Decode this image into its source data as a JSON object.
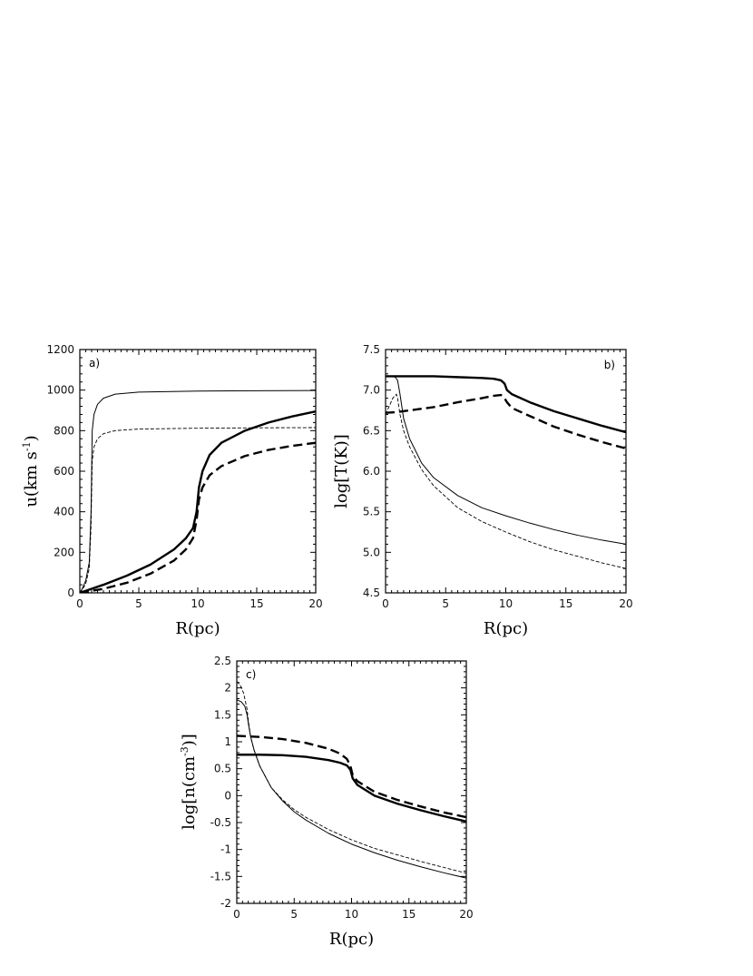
{
  "chart_data": [
    {
      "type": "line",
      "panel_label": "a)",
      "xlabel": "R(pc)",
      "ylabel_main": "u(km s",
      "ylabel_sup": "-1",
      "ylabel_end": ")",
      "xlim": [
        0,
        20
      ],
      "ylim": [
        0,
        1200
      ],
      "xticks": [
        0,
        5,
        10,
        15,
        20
      ],
      "yticks": [
        0,
        200,
        400,
        600,
        800,
        1000,
        1200
      ],
      "series": [
        {
          "style": "thin-solid",
          "x": [
            0,
            0.2,
            0.5,
            0.8,
            0.95,
            1.05,
            1.2,
            1.5,
            2,
            3,
            5,
            10,
            15,
            20
          ],
          "y": [
            0,
            20,
            60,
            150,
            400,
            800,
            880,
            930,
            960,
            980,
            990,
            995,
            997,
            998
          ]
        },
        {
          "style": "thin-dashed",
          "x": [
            0,
            0.2,
            0.5,
            0.8,
            0.95,
            1.05,
            1.2,
            1.5,
            2,
            3,
            5,
            10,
            15,
            20
          ],
          "y": [
            0,
            15,
            45,
            120,
            330,
            650,
            720,
            760,
            785,
            800,
            808,
            812,
            814,
            815
          ]
        },
        {
          "style": "thick-solid",
          "x": [
            0,
            2,
            4,
            6,
            8,
            9,
            9.6,
            9.9,
            10.1,
            10.4,
            11,
            12,
            14,
            16,
            18,
            20
          ],
          "y": [
            0,
            40,
            85,
            140,
            215,
            270,
            320,
            400,
            520,
            600,
            680,
            740,
            800,
            840,
            870,
            895
          ]
        },
        {
          "style": "thick-dashed",
          "x": [
            0,
            2,
            4,
            6,
            8,
            9,
            9.6,
            9.9,
            10.1,
            10.4,
            11,
            12,
            14,
            16,
            18,
            20
          ],
          "y": [
            0,
            20,
            50,
            95,
            160,
            215,
            270,
            360,
            460,
            520,
            580,
            625,
            675,
            705,
            725,
            740
          ]
        }
      ]
    },
    {
      "type": "line",
      "panel_label": "b)",
      "xlabel": "R(pc)",
      "ylabel_main": "log[T(K)]",
      "xlim": [
        0,
        20
      ],
      "ylim": [
        4.5,
        7.5
      ],
      "xticks": [
        0,
        5,
        10,
        15,
        20
      ],
      "yticks": [
        4.5,
        5.0,
        5.5,
        6.0,
        6.5,
        7.0,
        7.5
      ],
      "ytick_labels": [
        "4.5",
        "5.0",
        "5.5",
        "6.0",
        "6.5",
        "7.0",
        "7.5"
      ],
      "series": [
        {
          "style": "thick-solid",
          "x": [
            0,
            2,
            4,
            6,
            8,
            9,
            9.6,
            9.9,
            10.1,
            10.5,
            12,
            14,
            16,
            18,
            20
          ],
          "y": [
            7.17,
            7.17,
            7.17,
            7.16,
            7.15,
            7.14,
            7.12,
            7.08,
            7.0,
            6.95,
            6.85,
            6.74,
            6.65,
            6.56,
            6.48
          ]
        },
        {
          "style": "thick-dashed",
          "x": [
            0,
            1,
            2,
            4,
            6,
            8,
            9,
            9.6,
            9.9,
            10.1,
            10.5,
            12,
            14,
            16,
            18,
            20
          ],
          "y": [
            6.72,
            6.73,
            6.75,
            6.79,
            6.85,
            6.9,
            6.93,
            6.94,
            6.9,
            6.85,
            6.78,
            6.68,
            6.55,
            6.45,
            6.36,
            6.28
          ]
        },
        {
          "style": "thin-solid",
          "x": [
            0,
            0.5,
            0.8,
            1.0,
            1.2,
            1.5,
            2,
            3,
            4,
            6,
            8,
            10,
            12,
            14,
            16,
            18,
            20
          ],
          "y": [
            7.17,
            7.17,
            7.16,
            7.12,
            6.95,
            6.65,
            6.4,
            6.1,
            5.92,
            5.7,
            5.55,
            5.45,
            5.36,
            5.28,
            5.21,
            5.15,
            5.1
          ]
        },
        {
          "style": "thin-dashed",
          "x": [
            0,
            0.3,
            0.6,
            0.9,
            1.0,
            1.2,
            1.5,
            2,
            3,
            4,
            6,
            8,
            10,
            12,
            14,
            16,
            18,
            20
          ],
          "y": [
            6.7,
            6.8,
            6.9,
            6.95,
            6.9,
            6.7,
            6.5,
            6.3,
            6.02,
            5.82,
            5.55,
            5.38,
            5.25,
            5.13,
            5.03,
            4.95,
            4.87,
            4.8
          ]
        }
      ]
    },
    {
      "type": "line",
      "panel_label": "c)",
      "xlabel": "R(pc)",
      "ylabel_main": "log[n(cm",
      "ylabel_sup": "-3",
      "ylabel_end": ")]",
      "xlim": [
        0,
        20
      ],
      "ylim": [
        -2,
        2.5
      ],
      "xticks": [
        0,
        5,
        10,
        15,
        20
      ],
      "yticks": [
        -2,
        -1.5,
        -1,
        -0.5,
        0,
        0.5,
        1,
        1.5,
        2,
        2.5
      ],
      "series": [
        {
          "style": "thick-solid",
          "x": [
            0,
            2,
            4,
            6,
            8,
            9,
            9.6,
            9.9,
            10.1,
            10.5,
            12,
            14,
            16,
            18,
            20
          ],
          "y": [
            0.76,
            0.76,
            0.75,
            0.72,
            0.66,
            0.61,
            0.56,
            0.48,
            0.32,
            0.2,
            0.0,
            -0.15,
            -0.27,
            -0.38,
            -0.48
          ]
        },
        {
          "style": "thick-dashed",
          "x": [
            0,
            2,
            4,
            6,
            8,
            9,
            9.6,
            9.9,
            10.1,
            10.5,
            12,
            14,
            16,
            18,
            20
          ],
          "y": [
            1.11,
            1.09,
            1.05,
            0.98,
            0.87,
            0.78,
            0.68,
            0.55,
            0.38,
            0.27,
            0.07,
            -0.08,
            -0.2,
            -0.31,
            -0.4
          ]
        },
        {
          "style": "thin-solid",
          "x": [
            0,
            0.4,
            0.7,
            0.9,
            1.0,
            1.2,
            1.5,
            2,
            3,
            4,
            5,
            6,
            8,
            10,
            12,
            14,
            16,
            18,
            20
          ],
          "y": [
            1.78,
            1.74,
            1.66,
            1.5,
            1.35,
            1.1,
            0.85,
            0.55,
            0.15,
            -0.1,
            -0.3,
            -0.45,
            -0.7,
            -0.9,
            -1.06,
            -1.2,
            -1.32,
            -1.43,
            -1.53
          ]
        },
        {
          "style": "thin-dashed",
          "x": [
            0,
            0.3,
            0.6,
            0.9,
            1.0,
            1.2,
            1.5,
            2,
            3,
            4,
            5,
            6,
            8,
            10,
            12,
            14,
            16,
            18,
            20
          ],
          "y": [
            2.12,
            2.05,
            1.9,
            1.6,
            1.4,
            1.1,
            0.85,
            0.55,
            0.15,
            -0.08,
            -0.26,
            -0.4,
            -0.63,
            -0.82,
            -0.98,
            -1.1,
            -1.22,
            -1.33,
            -1.44
          ]
        }
      ]
    }
  ]
}
